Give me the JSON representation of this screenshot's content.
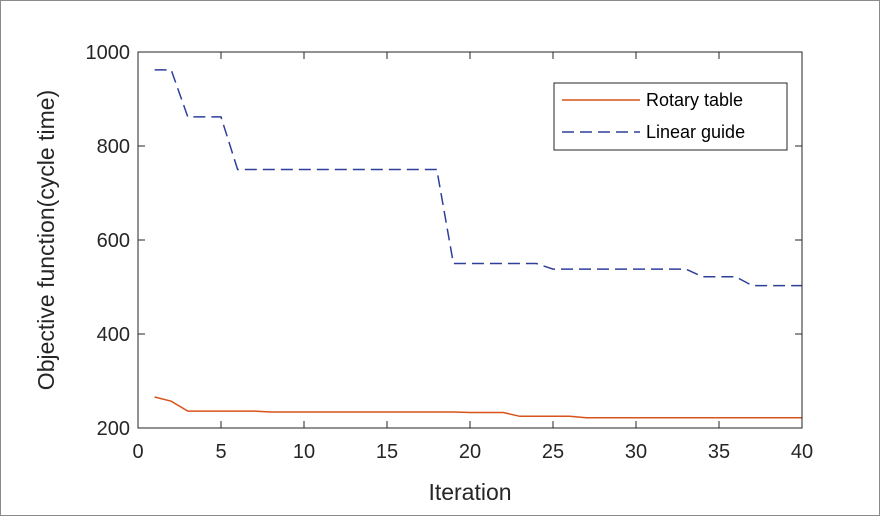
{
  "chart_data": {
    "type": "line",
    "xlabel": "Iteration",
    "ylabel": "Objective function(cycle time)",
    "xlim": [
      0,
      40
    ],
    "ylim": [
      200,
      1000
    ],
    "xticks": [
      "0",
      "5",
      "10",
      "15",
      "20",
      "25",
      "30",
      "35",
      "40"
    ],
    "yticks": [
      "200",
      "400",
      "600",
      "800",
      "1000"
    ],
    "grid": false,
    "legend_position": "top-right",
    "series": [
      {
        "name": "Rotary table",
        "color": "#D95319",
        "style": "solid",
        "x": [
          1,
          2,
          3,
          4,
          5,
          6,
          7,
          8,
          9,
          10,
          11,
          12,
          13,
          14,
          15,
          16,
          17,
          18,
          19,
          20,
          21,
          22,
          23,
          24,
          25,
          26,
          27,
          28,
          29,
          30,
          31,
          32,
          33,
          34,
          35,
          36,
          37,
          38,
          39,
          40
        ],
        "y": [
          266,
          257,
          236,
          236,
          236,
          236,
          236,
          234,
          234,
          234,
          234,
          234,
          234,
          234,
          234,
          234,
          234,
          234,
          234,
          233,
          233,
          233,
          225,
          225,
          225,
          225,
          222,
          222,
          222,
          222,
          222,
          222,
          222,
          222,
          222,
          222,
          222,
          222,
          222,
          222
        ]
      },
      {
        "name": "Linear guide",
        "color": "#2E3F99",
        "style": "dashed",
        "x": [
          1,
          2,
          3,
          4,
          5,
          6,
          7,
          8,
          9,
          10,
          11,
          12,
          13,
          14,
          15,
          16,
          17,
          18,
          19,
          20,
          21,
          22,
          23,
          24,
          25,
          26,
          27,
          28,
          29,
          30,
          31,
          32,
          33,
          34,
          35,
          36,
          37,
          38,
          39,
          40
        ],
        "y": [
          962,
          962,
          862,
          862,
          862,
          750,
          750,
          750,
          750,
          750,
          750,
          750,
          750,
          750,
          750,
          750,
          750,
          750,
          550,
          550,
          550,
          550,
          550,
          550,
          538,
          538,
          538,
          538,
          538,
          538,
          538,
          538,
          538,
          522,
          522,
          522,
          503,
          503,
          503,
          503
        ]
      }
    ]
  }
}
